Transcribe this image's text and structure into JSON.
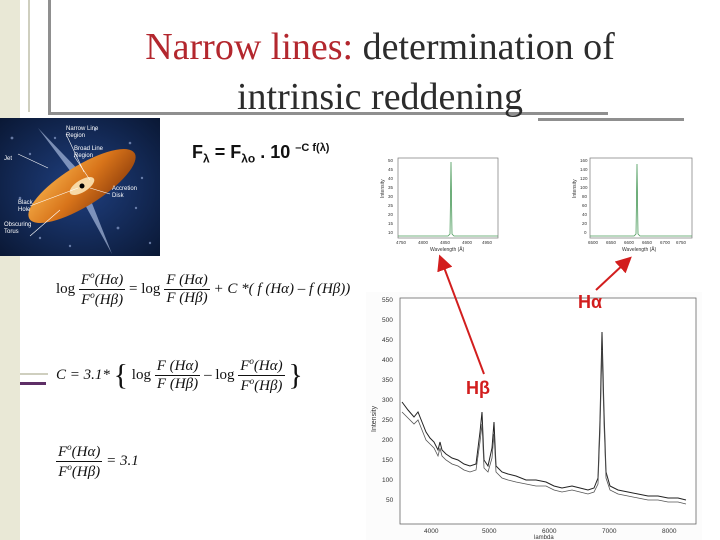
{
  "slide": {
    "title_part1": "Narrow lines:",
    "title_part2": "determination of",
    "title_line2": "intrinsic reddening"
  },
  "formula": {
    "F": "F",
    "lambda_sub": "λ",
    "eq": " = F",
    "lambda0_sub": "λo",
    "dot10": " . 10 ",
    "exp": "–C f(λ)"
  },
  "equations": {
    "eq1_log": "log",
    "eq1_fo_ha": "F",
    "eq1_fo_ha_sup": "o",
    "eq1_ha": "(Hα)",
    "eq1_hb": "(Hβ)",
    "eq1_rhs": "+ C *( f (Hα) – f (Hβ))",
    "eq2_lhs": "C = 3.1*",
    "eq3_rhs": "= 3.1"
  },
  "agn_labels": {
    "narrow_line": "Narrow Line\nRegion",
    "broad_line": "Broad Line\nRegion",
    "jet": "Jet",
    "black_hole": "Black\nHole",
    "accretion_disk": "Accretion\nDisk",
    "torus": "Obscuring\nTorus"
  },
  "small_plot_left": {
    "ylabel": "Intensity",
    "xlabel": "Wavelength (Å)",
    "yticks": [
      "50",
      "45",
      "40",
      "35",
      "30",
      "25",
      "20",
      "15",
      "10"
    ],
    "xticks": [
      "4750",
      "4800",
      "4850",
      "4900",
      "4950"
    ]
  },
  "small_plot_right": {
    "ylabel": "Intensity",
    "xlabel": "Wavelength (Å)",
    "yticks": [
      "160",
      "140",
      "120",
      "100",
      "80",
      "60",
      "40",
      "20",
      "0"
    ],
    "xticks": [
      "6500",
      "6550",
      "6600",
      "6650",
      "6700",
      "6750"
    ]
  },
  "spectrum": {
    "ylabel": "Intensity",
    "xlabel": "lambda",
    "yticks": [
      "550",
      "500",
      "450",
      "400",
      "350",
      "300",
      "250",
      "200",
      "150",
      "100",
      "50"
    ],
    "xticks": [
      "4000",
      "5000",
      "6000",
      "7000",
      "8000"
    ]
  },
  "labels": {
    "h_alpha": "Hα",
    "h_beta": "Hβ"
  },
  "colors": {
    "title_red": "#b3272e",
    "arrow_red": "#d21e1e",
    "label_red": "#d21e1e"
  }
}
